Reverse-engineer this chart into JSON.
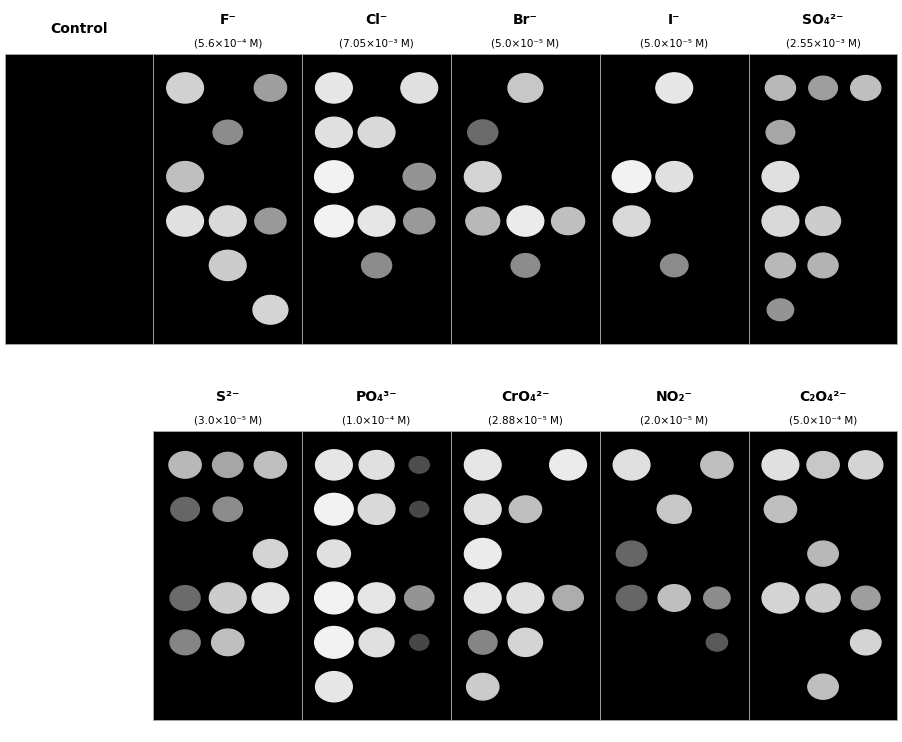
{
  "fig_bg": "#ffffff",
  "row1_labels": [
    "Control",
    "F⁻",
    "Cl⁻",
    "Br⁻",
    "I⁻",
    "SO₄²⁻"
  ],
  "row1_subs": [
    "",
    "(5.6×10⁻⁴ M)",
    "(7.05×10⁻³ M)",
    "(5.0×10⁻⁵ M)",
    "(5.0×10⁻⁵ M)",
    "(2.55×10⁻³ M)"
  ],
  "row2_labels": [
    "S²⁻",
    "PO₄³⁻",
    "CrO₄²⁻",
    "NO₂⁻",
    "C₂O₄²⁻"
  ],
  "row2_subs": [
    "(3.0×10⁻⁵ M)",
    "(1.0×10⁻⁴ M)",
    "(2.88×10⁻⁵ M)",
    "(2.0×10⁻⁵ M)",
    "(5.0×10⁻⁴ M)"
  ],
  "panel_dots": {
    "Control": [],
    "F-": [
      {
        "row": 0,
        "col": 0,
        "gray": 0.82,
        "size": 1.0
      },
      {
        "row": 0,
        "col": 2,
        "gray": 0.62,
        "size": 0.88
      },
      {
        "row": 1,
        "col": 1,
        "gray": 0.55,
        "size": 0.8
      },
      {
        "row": 2,
        "col": 0,
        "gray": 0.75,
        "size": 1.0
      },
      {
        "row": 3,
        "col": 0,
        "gray": 0.88,
        "size": 1.0
      },
      {
        "row": 3,
        "col": 1,
        "gray": 0.85,
        "size": 1.0
      },
      {
        "row": 3,
        "col": 2,
        "gray": 0.6,
        "size": 0.85
      },
      {
        "row": 4,
        "col": 1,
        "gray": 0.8,
        "size": 1.0
      },
      {
        "row": 5,
        "col": 2,
        "gray": 0.83,
        "size": 0.95
      }
    ],
    "Cl-": [
      {
        "row": 0,
        "col": 0,
        "gray": 0.9,
        "size": 1.0
      },
      {
        "row": 0,
        "col": 2,
        "gray": 0.88,
        "size": 1.0
      },
      {
        "row": 1,
        "col": 0,
        "gray": 0.88,
        "size": 1.0
      },
      {
        "row": 1,
        "col": 1,
        "gray": 0.85,
        "size": 1.0
      },
      {
        "row": 2,
        "col": 0,
        "gray": 0.95,
        "size": 1.05
      },
      {
        "row": 2,
        "col": 2,
        "gray": 0.58,
        "size": 0.88
      },
      {
        "row": 3,
        "col": 0,
        "gray": 0.95,
        "size": 1.05
      },
      {
        "row": 3,
        "col": 1,
        "gray": 0.9,
        "size": 1.0
      },
      {
        "row": 3,
        "col": 2,
        "gray": 0.6,
        "size": 0.85
      },
      {
        "row": 4,
        "col": 1,
        "gray": 0.55,
        "size": 0.82
      }
    ],
    "Br-": [
      {
        "row": 0,
        "col": 1,
        "gray": 0.78,
        "size": 0.95
      },
      {
        "row": 1,
        "col": 0,
        "gray": 0.42,
        "size": 0.82
      },
      {
        "row": 2,
        "col": 0,
        "gray": 0.83,
        "size": 1.0
      },
      {
        "row": 3,
        "col": 0,
        "gray": 0.72,
        "size": 0.92
      },
      {
        "row": 3,
        "col": 1,
        "gray": 0.92,
        "size": 1.0
      },
      {
        "row": 3,
        "col": 2,
        "gray": 0.75,
        "size": 0.9
      },
      {
        "row": 4,
        "col": 1,
        "gray": 0.55,
        "size": 0.78
      }
    ],
    "I-": [
      {
        "row": 0,
        "col": 1,
        "gray": 0.9,
        "size": 1.0
      },
      {
        "row": 2,
        "col": 0,
        "gray": 0.95,
        "size": 1.05
      },
      {
        "row": 2,
        "col": 1,
        "gray": 0.88,
        "size": 1.0
      },
      {
        "row": 3,
        "col": 0,
        "gray": 0.85,
        "size": 1.0
      },
      {
        "row": 4,
        "col": 1,
        "gray": 0.55,
        "size": 0.75
      }
    ],
    "SO4-": [
      {
        "row": 0,
        "col": 0,
        "gray": 0.72,
        "size": 0.82
      },
      {
        "row": 0,
        "col": 1,
        "gray": 0.62,
        "size": 0.78
      },
      {
        "row": 0,
        "col": 2,
        "gray": 0.75,
        "size": 0.82
      },
      {
        "row": 1,
        "col": 0,
        "gray": 0.65,
        "size": 0.78
      },
      {
        "row": 2,
        "col": 0,
        "gray": 0.88,
        "size": 1.0
      },
      {
        "row": 3,
        "col": 0,
        "gray": 0.85,
        "size": 1.0
      },
      {
        "row": 3,
        "col": 1,
        "gray": 0.8,
        "size": 0.95
      },
      {
        "row": 4,
        "col": 0,
        "gray": 0.72,
        "size": 0.82
      },
      {
        "row": 4,
        "col": 1,
        "gray": 0.7,
        "size": 0.82
      },
      {
        "row": 5,
        "col": 0,
        "gray": 0.58,
        "size": 0.72
      }
    ],
    "S2-": [
      {
        "row": 0,
        "col": 0,
        "gray": 0.72,
        "size": 0.88
      },
      {
        "row": 0,
        "col": 1,
        "gray": 0.65,
        "size": 0.83
      },
      {
        "row": 0,
        "col": 2,
        "gray": 0.75,
        "size": 0.88
      },
      {
        "row": 1,
        "col": 0,
        "gray": 0.4,
        "size": 0.78
      },
      {
        "row": 1,
        "col": 1,
        "gray": 0.55,
        "size": 0.8
      },
      {
        "row": 2,
        "col": 2,
        "gray": 0.83,
        "size": 0.93
      },
      {
        "row": 3,
        "col": 0,
        "gray": 0.42,
        "size": 0.82
      },
      {
        "row": 3,
        "col": 1,
        "gray": 0.8,
        "size": 1.0
      },
      {
        "row": 3,
        "col": 2,
        "gray": 0.9,
        "size": 1.0
      },
      {
        "row": 4,
        "col": 0,
        "gray": 0.52,
        "size": 0.82
      },
      {
        "row": 4,
        "col": 1,
        "gray": 0.75,
        "size": 0.88
      }
    ],
    "PO4-": [
      {
        "row": 0,
        "col": 0,
        "gray": 0.9,
        "size": 1.0
      },
      {
        "row": 0,
        "col": 1,
        "gray": 0.88,
        "size": 0.95
      },
      {
        "row": 0,
        "col": 2,
        "gray": 0.3,
        "size": 0.55
      },
      {
        "row": 1,
        "col": 0,
        "gray": 0.95,
        "size": 1.05
      },
      {
        "row": 1,
        "col": 1,
        "gray": 0.85,
        "size": 1.0
      },
      {
        "row": 1,
        "col": 2,
        "gray": 0.28,
        "size": 0.52
      },
      {
        "row": 2,
        "col": 0,
        "gray": 0.88,
        "size": 0.9
      },
      {
        "row": 3,
        "col": 0,
        "gray": 0.95,
        "size": 1.05
      },
      {
        "row": 3,
        "col": 1,
        "gray": 0.9,
        "size": 1.0
      },
      {
        "row": 3,
        "col": 2,
        "gray": 0.58,
        "size": 0.8
      },
      {
        "row": 4,
        "col": 0,
        "gray": 0.95,
        "size": 1.05
      },
      {
        "row": 4,
        "col": 1,
        "gray": 0.88,
        "size": 0.95
      },
      {
        "row": 4,
        "col": 2,
        "gray": 0.28,
        "size": 0.52
      },
      {
        "row": 5,
        "col": 0,
        "gray": 0.9,
        "size": 1.0
      }
    ],
    "CrO4-": [
      {
        "row": 0,
        "col": 0,
        "gray": 0.9,
        "size": 1.0
      },
      {
        "row": 0,
        "col": 2,
        "gray": 0.92,
        "size": 1.0
      },
      {
        "row": 1,
        "col": 0,
        "gray": 0.88,
        "size": 1.0
      },
      {
        "row": 1,
        "col": 1,
        "gray": 0.75,
        "size": 0.88
      },
      {
        "row": 2,
        "col": 0,
        "gray": 0.92,
        "size": 1.0
      },
      {
        "row": 3,
        "col": 0,
        "gray": 0.9,
        "size": 1.0
      },
      {
        "row": 3,
        "col": 1,
        "gray": 0.88,
        "size": 1.0
      },
      {
        "row": 3,
        "col": 2,
        "gray": 0.68,
        "size": 0.83
      },
      {
        "row": 4,
        "col": 0,
        "gray": 0.52,
        "size": 0.78
      },
      {
        "row": 4,
        "col": 1,
        "gray": 0.83,
        "size": 0.93
      },
      {
        "row": 5,
        "col": 0,
        "gray": 0.8,
        "size": 0.88
      }
    ],
    "NO2-": [
      {
        "row": 0,
        "col": 0,
        "gray": 0.88,
        "size": 1.0
      },
      {
        "row": 0,
        "col": 2,
        "gray": 0.75,
        "size": 0.88
      },
      {
        "row": 1,
        "col": 1,
        "gray": 0.78,
        "size": 0.93
      },
      {
        "row": 2,
        "col": 0,
        "gray": 0.4,
        "size": 0.83
      },
      {
        "row": 3,
        "col": 0,
        "gray": 0.4,
        "size": 0.83
      },
      {
        "row": 3,
        "col": 1,
        "gray": 0.75,
        "size": 0.88
      },
      {
        "row": 3,
        "col": 2,
        "gray": 0.55,
        "size": 0.72
      },
      {
        "row": 4,
        "col": 2,
        "gray": 0.35,
        "size": 0.58
      }
    ],
    "C2O4-": [
      {
        "row": 0,
        "col": 0,
        "gray": 0.88,
        "size": 1.0
      },
      {
        "row": 0,
        "col": 1,
        "gray": 0.78,
        "size": 0.88
      },
      {
        "row": 0,
        "col": 2,
        "gray": 0.83,
        "size": 0.93
      },
      {
        "row": 1,
        "col": 0,
        "gray": 0.75,
        "size": 0.88
      },
      {
        "row": 2,
        "col": 1,
        "gray": 0.72,
        "size": 0.83
      },
      {
        "row": 3,
        "col": 0,
        "gray": 0.83,
        "size": 1.0
      },
      {
        "row": 3,
        "col": 1,
        "gray": 0.8,
        "size": 0.93
      },
      {
        "row": 3,
        "col": 2,
        "gray": 0.62,
        "size": 0.78
      },
      {
        "row": 4,
        "col": 2,
        "gray": 0.83,
        "size": 0.83
      },
      {
        "row": 5,
        "col": 1,
        "gray": 0.75,
        "size": 0.83
      }
    ]
  }
}
